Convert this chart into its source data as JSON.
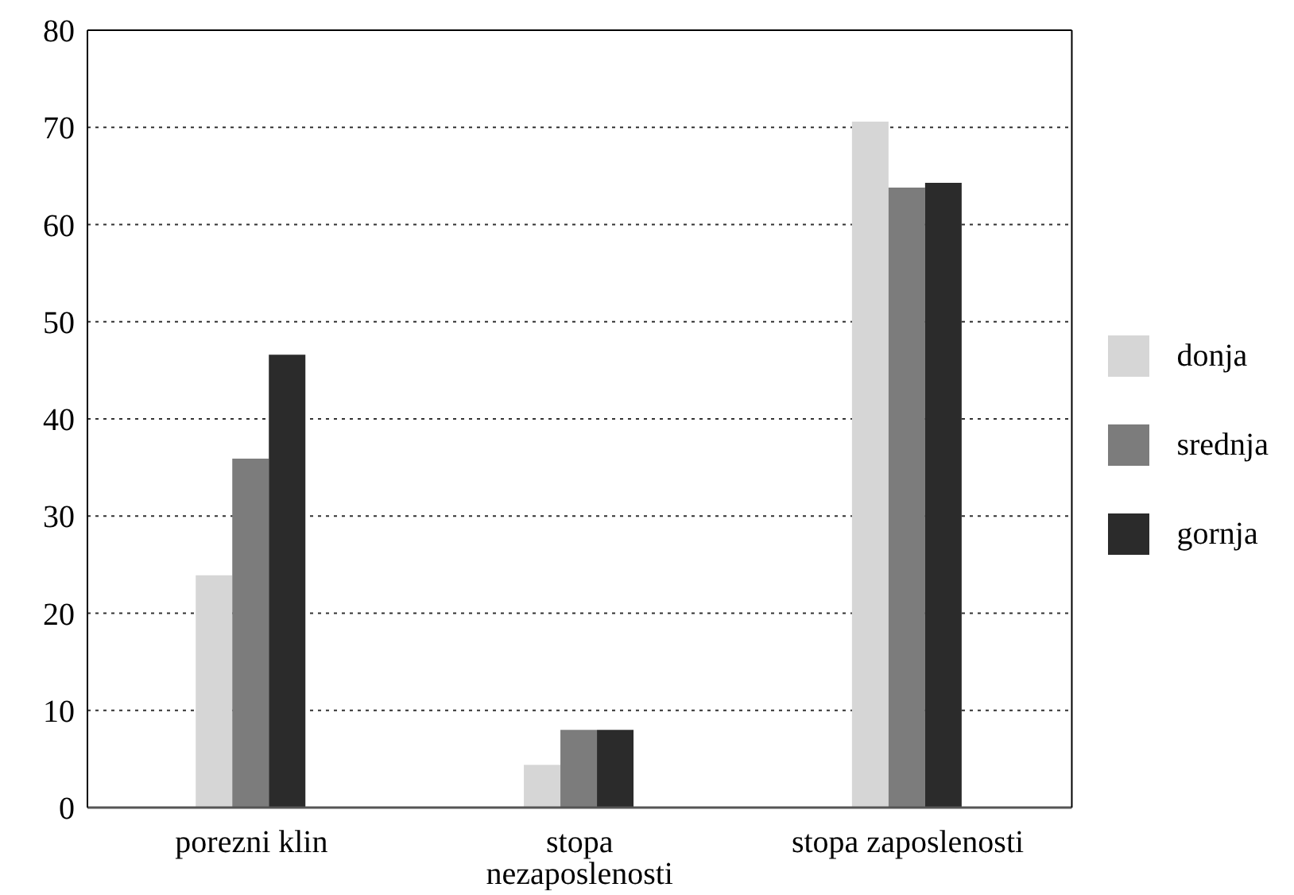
{
  "chart_data": {
    "type": "bar",
    "categories": [
      "porezni klin",
      "stopa nezaposlenosti",
      "stopa zaposlenosti"
    ],
    "series": [
      {
        "name": "donja",
        "color": "#d6d6d6",
        "values": [
          23.9,
          4.4,
          70.6
        ]
      },
      {
        "name": "srednja",
        "color": "#7c7c7c",
        "values": [
          35.9,
          8.0,
          63.8
        ]
      },
      {
        "name": "gornja",
        "color": "#2b2b2b",
        "values": [
          46.6,
          8.0,
          64.3
        ]
      }
    ],
    "ylim": [
      0,
      80
    ],
    "yticks": [
      0,
      10,
      20,
      30,
      40,
      50,
      60,
      70,
      80
    ],
    "grid": "y",
    "legend": "right"
  }
}
